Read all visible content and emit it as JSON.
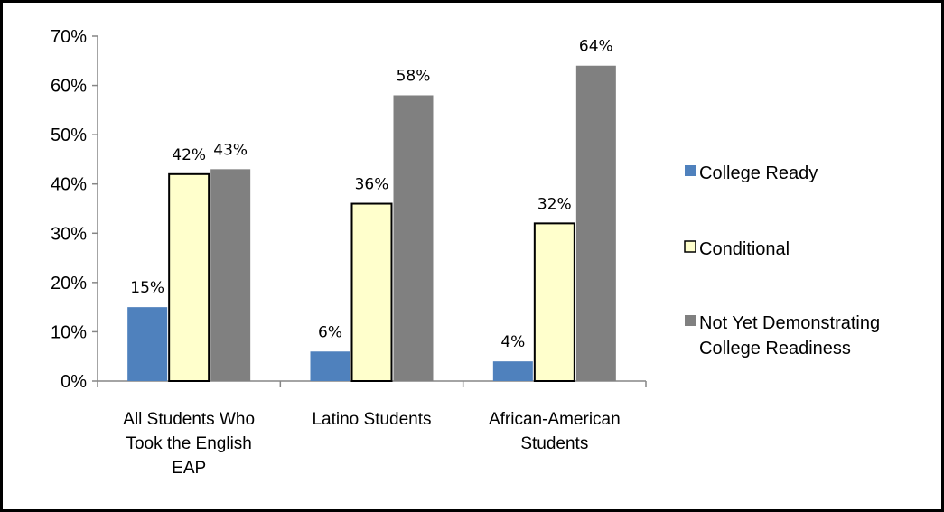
{
  "chart_data": {
    "type": "bar",
    "categories": [
      [
        "All Students Who",
        "Took the English",
        "EAP"
      ],
      [
        "Latino Students"
      ],
      [
        "African-American",
        "Students"
      ]
    ],
    "series": [
      {
        "name": "College Ready",
        "values": [
          15,
          6,
          4
        ],
        "labels": [
          "15%",
          "6%",
          "4%"
        ],
        "color": "#4F81BD",
        "stroke": "#4F81BD"
      },
      {
        "name": "Conditional",
        "values": [
          42,
          36,
          32
        ],
        "labels": [
          "42%",
          "36%",
          "32%"
        ],
        "color": "#FFFFCC",
        "stroke": "#000000"
      },
      {
        "name": "Not Yet Demonstrating College Readiness",
        "legend_lines": [
          "Not Yet Demonstrating",
          "College Readiness"
        ],
        "values": [
          43,
          58,
          64
        ],
        "labels": [
          "43%",
          "58%",
          "64%"
        ],
        "color": "#808080",
        "stroke": "#808080"
      }
    ],
    "ylim": [
      0,
      70
    ],
    "yticks": [
      "0%",
      "10%",
      "20%",
      "30%",
      "40%",
      "50%",
      "60%",
      "70%"
    ],
    "legend_position": "right",
    "grid": false
  }
}
